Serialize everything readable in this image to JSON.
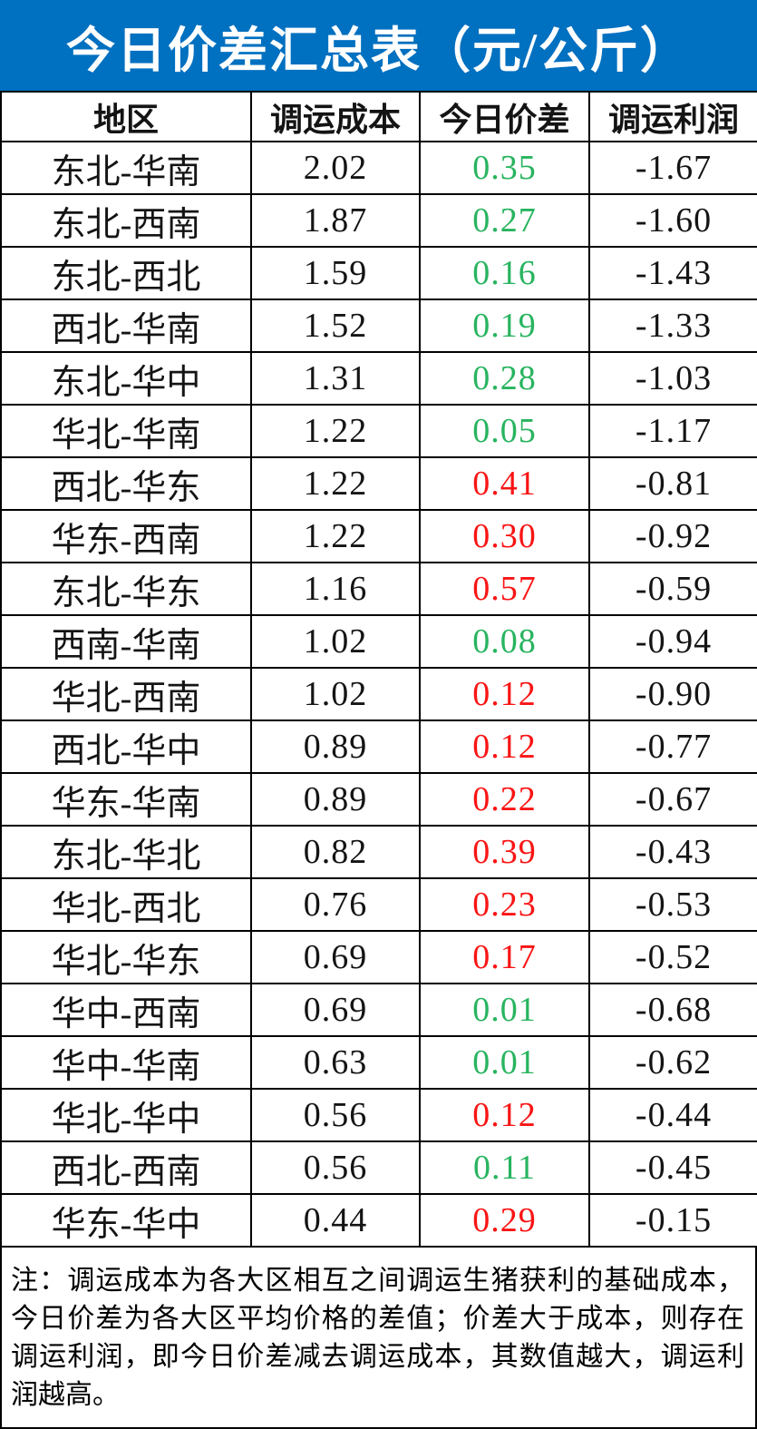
{
  "header": {
    "title": "今日价差汇总表（元/公斤）"
  },
  "colors": {
    "header_bg": "#0070C0",
    "header_text": "#FFFFFF",
    "positive_green": "#28B45F",
    "negative_red": "#FA1414",
    "grid_line": "#000000",
    "body_text": "#141414"
  },
  "chart_data": {
    "type": "table",
    "title": "今日价差汇总表（元/公斤）",
    "columns": [
      "地区",
      "调运成本",
      "今日价差",
      "调运利润"
    ],
    "rows": [
      {
        "region": "东北-华南",
        "cost": 2.02,
        "diff": 0.35,
        "diff_color": "green",
        "profit": -1.67
      },
      {
        "region": "东北-西南",
        "cost": 1.87,
        "diff": 0.27,
        "diff_color": "green",
        "profit": -1.6
      },
      {
        "region": "东北-西北",
        "cost": 1.59,
        "diff": 0.16,
        "diff_color": "green",
        "profit": -1.43
      },
      {
        "region": "西北-华南",
        "cost": 1.52,
        "diff": 0.19,
        "diff_color": "green",
        "profit": -1.33
      },
      {
        "region": "东北-华中",
        "cost": 1.31,
        "diff": 0.28,
        "diff_color": "green",
        "profit": -1.03
      },
      {
        "region": "华北-华南",
        "cost": 1.22,
        "diff": 0.05,
        "diff_color": "green",
        "profit": -1.17
      },
      {
        "region": "西北-华东",
        "cost": 1.22,
        "diff": 0.41,
        "diff_color": "red",
        "profit": -0.81
      },
      {
        "region": "华东-西南",
        "cost": 1.22,
        "diff": 0.3,
        "diff_color": "red",
        "profit": -0.92
      },
      {
        "region": "东北-华东",
        "cost": 1.16,
        "diff": 0.57,
        "diff_color": "red",
        "profit": -0.59
      },
      {
        "region": "西南-华南",
        "cost": 1.02,
        "diff": 0.08,
        "diff_color": "green",
        "profit": -0.94
      },
      {
        "region": "华北-西南",
        "cost": 1.02,
        "diff": 0.12,
        "diff_color": "red",
        "profit": -0.9
      },
      {
        "region": "西北-华中",
        "cost": 0.89,
        "diff": 0.12,
        "diff_color": "red",
        "profit": -0.77
      },
      {
        "region": "华东-华南",
        "cost": 0.89,
        "diff": 0.22,
        "diff_color": "red",
        "profit": -0.67
      },
      {
        "region": "东北-华北",
        "cost": 0.82,
        "diff": 0.39,
        "diff_color": "red",
        "profit": -0.43
      },
      {
        "region": "华北-西北",
        "cost": 0.76,
        "diff": 0.23,
        "diff_color": "red",
        "profit": -0.53
      },
      {
        "region": "华北-华东",
        "cost": 0.69,
        "diff": 0.17,
        "diff_color": "red",
        "profit": -0.52
      },
      {
        "region": "华中-西南",
        "cost": 0.69,
        "diff": 0.01,
        "diff_color": "green",
        "profit": -0.68
      },
      {
        "region": "华中-华南",
        "cost": 0.63,
        "diff": 0.01,
        "diff_color": "green",
        "profit": -0.62
      },
      {
        "region": "华北-华中",
        "cost": 0.56,
        "diff": 0.12,
        "diff_color": "red",
        "profit": -0.44
      },
      {
        "region": "西北-西南",
        "cost": 0.56,
        "diff": 0.11,
        "diff_color": "green",
        "profit": -0.45
      },
      {
        "region": "华东-华中",
        "cost": 0.44,
        "diff": 0.29,
        "diff_color": "red",
        "profit": -0.15
      }
    ]
  },
  "footer": {
    "note": "注：调运成本为各大区相互之间调运生猪获利的基础成本，今日价差为各大区平均价格的差值；价差大于成本，则存在调运利润，即今日价差减去调运成本，其数值越大，调运利润越高。"
  }
}
